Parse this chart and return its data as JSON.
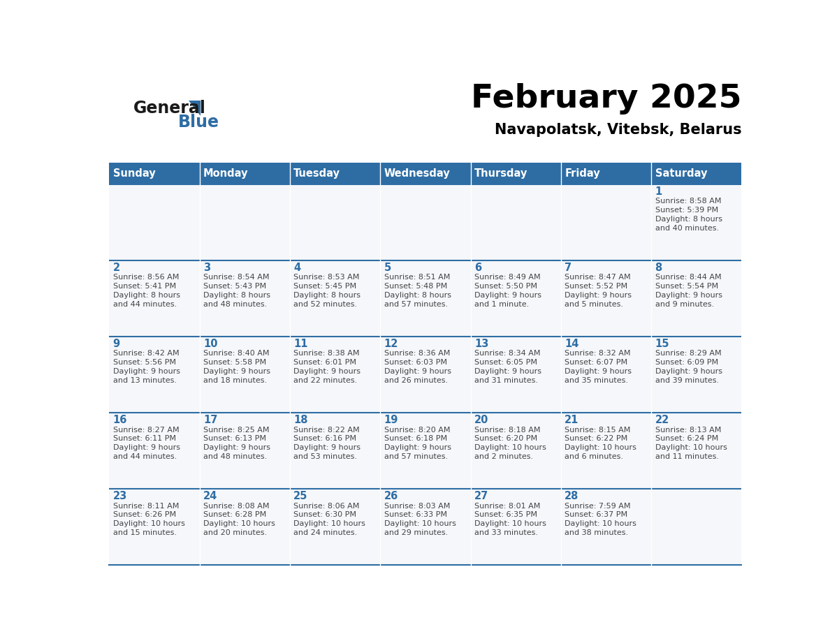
{
  "title": "February 2025",
  "subtitle": "Navapolatsk, Vitebsk, Belarus",
  "days_of_week": [
    "Sunday",
    "Monday",
    "Tuesday",
    "Wednesday",
    "Thursday",
    "Friday",
    "Saturday"
  ],
  "header_bg_color": "#2e6da4",
  "header_text_color": "#ffffff",
  "row_bg_color": "#f5f7fa",
  "row_bg_alt": "#ffffff",
  "border_color": "#2e6da4",
  "day_number_color": "#2e6da4",
  "cell_text_color": "#444444",
  "title_color": "#000000",
  "subtitle_color": "#000000",
  "logo_general_color": "#1a1a1a",
  "logo_blue_color": "#2e6da4",
  "calendar": [
    [
      {
        "day": null,
        "sunrise": null,
        "sunset": null,
        "daylight": null
      },
      {
        "day": null,
        "sunrise": null,
        "sunset": null,
        "daylight": null
      },
      {
        "day": null,
        "sunrise": null,
        "sunset": null,
        "daylight": null
      },
      {
        "day": null,
        "sunrise": null,
        "sunset": null,
        "daylight": null
      },
      {
        "day": null,
        "sunrise": null,
        "sunset": null,
        "daylight": null
      },
      {
        "day": null,
        "sunrise": null,
        "sunset": null,
        "daylight": null
      },
      {
        "day": 1,
        "sunrise": "8:58 AM",
        "sunset": "5:39 PM",
        "daylight": "8 hours\nand 40 minutes."
      }
    ],
    [
      {
        "day": 2,
        "sunrise": "8:56 AM",
        "sunset": "5:41 PM",
        "daylight": "8 hours\nand 44 minutes."
      },
      {
        "day": 3,
        "sunrise": "8:54 AM",
        "sunset": "5:43 PM",
        "daylight": "8 hours\nand 48 minutes."
      },
      {
        "day": 4,
        "sunrise": "8:53 AM",
        "sunset": "5:45 PM",
        "daylight": "8 hours\nand 52 minutes."
      },
      {
        "day": 5,
        "sunrise": "8:51 AM",
        "sunset": "5:48 PM",
        "daylight": "8 hours\nand 57 minutes."
      },
      {
        "day": 6,
        "sunrise": "8:49 AM",
        "sunset": "5:50 PM",
        "daylight": "9 hours\nand 1 minute."
      },
      {
        "day": 7,
        "sunrise": "8:47 AM",
        "sunset": "5:52 PM",
        "daylight": "9 hours\nand 5 minutes."
      },
      {
        "day": 8,
        "sunrise": "8:44 AM",
        "sunset": "5:54 PM",
        "daylight": "9 hours\nand 9 minutes."
      }
    ],
    [
      {
        "day": 9,
        "sunrise": "8:42 AM",
        "sunset": "5:56 PM",
        "daylight": "9 hours\nand 13 minutes."
      },
      {
        "day": 10,
        "sunrise": "8:40 AM",
        "sunset": "5:58 PM",
        "daylight": "9 hours\nand 18 minutes."
      },
      {
        "day": 11,
        "sunrise": "8:38 AM",
        "sunset": "6:01 PM",
        "daylight": "9 hours\nand 22 minutes."
      },
      {
        "day": 12,
        "sunrise": "8:36 AM",
        "sunset": "6:03 PM",
        "daylight": "9 hours\nand 26 minutes."
      },
      {
        "day": 13,
        "sunrise": "8:34 AM",
        "sunset": "6:05 PM",
        "daylight": "9 hours\nand 31 minutes."
      },
      {
        "day": 14,
        "sunrise": "8:32 AM",
        "sunset": "6:07 PM",
        "daylight": "9 hours\nand 35 minutes."
      },
      {
        "day": 15,
        "sunrise": "8:29 AM",
        "sunset": "6:09 PM",
        "daylight": "9 hours\nand 39 minutes."
      }
    ],
    [
      {
        "day": 16,
        "sunrise": "8:27 AM",
        "sunset": "6:11 PM",
        "daylight": "9 hours\nand 44 minutes."
      },
      {
        "day": 17,
        "sunrise": "8:25 AM",
        "sunset": "6:13 PM",
        "daylight": "9 hours\nand 48 minutes."
      },
      {
        "day": 18,
        "sunrise": "8:22 AM",
        "sunset": "6:16 PM",
        "daylight": "9 hours\nand 53 minutes."
      },
      {
        "day": 19,
        "sunrise": "8:20 AM",
        "sunset": "6:18 PM",
        "daylight": "9 hours\nand 57 minutes."
      },
      {
        "day": 20,
        "sunrise": "8:18 AM",
        "sunset": "6:20 PM",
        "daylight": "10 hours\nand 2 minutes."
      },
      {
        "day": 21,
        "sunrise": "8:15 AM",
        "sunset": "6:22 PM",
        "daylight": "10 hours\nand 6 minutes."
      },
      {
        "day": 22,
        "sunrise": "8:13 AM",
        "sunset": "6:24 PM",
        "daylight": "10 hours\nand 11 minutes."
      }
    ],
    [
      {
        "day": 23,
        "sunrise": "8:11 AM",
        "sunset": "6:26 PM",
        "daylight": "10 hours\nand 15 minutes."
      },
      {
        "day": 24,
        "sunrise": "8:08 AM",
        "sunset": "6:28 PM",
        "daylight": "10 hours\nand 20 minutes."
      },
      {
        "day": 25,
        "sunrise": "8:06 AM",
        "sunset": "6:30 PM",
        "daylight": "10 hours\nand 24 minutes."
      },
      {
        "day": 26,
        "sunrise": "8:03 AM",
        "sunset": "6:33 PM",
        "daylight": "10 hours\nand 29 minutes."
      },
      {
        "day": 27,
        "sunrise": "8:01 AM",
        "sunset": "6:35 PM",
        "daylight": "10 hours\nand 33 minutes."
      },
      {
        "day": 28,
        "sunrise": "7:59 AM",
        "sunset": "6:37 PM",
        "daylight": "10 hours\nand 38 minutes."
      },
      {
        "day": null,
        "sunrise": null,
        "sunset": null,
        "daylight": null
      }
    ]
  ]
}
